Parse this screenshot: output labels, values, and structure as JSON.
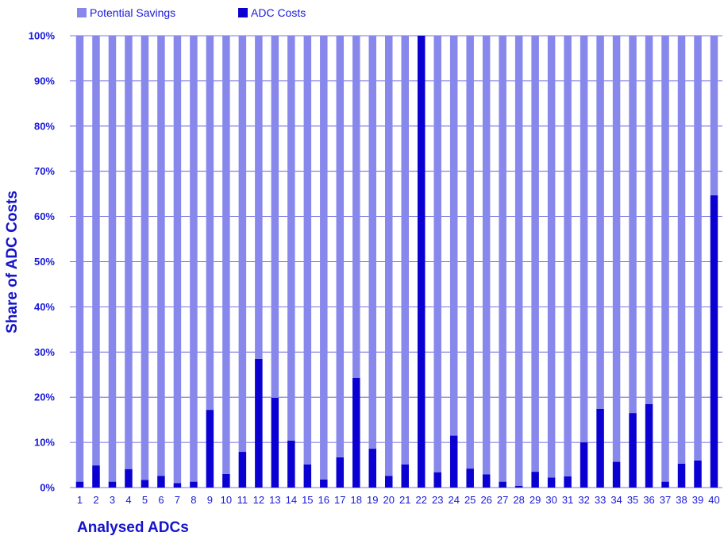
{
  "chart_data": {
    "type": "bar",
    "stacked": true,
    "percent": true,
    "xlabel": "Analysed ADCs",
    "ylabel": "Share of ADC Costs",
    "ylim": [
      0,
      100
    ],
    "y_ticks": [
      "0%",
      "10%",
      "20%",
      "30%",
      "40%",
      "50%",
      "60%",
      "70%",
      "80%",
      "90%",
      "100%"
    ],
    "grid": true,
    "legend_position": "top-left",
    "categories": [
      "1",
      "2",
      "3",
      "4",
      "5",
      "6",
      "7",
      "8",
      "9",
      "10",
      "11",
      "12",
      "13",
      "14",
      "15",
      "16",
      "17",
      "18",
      "19",
      "20",
      "21",
      "22",
      "23",
      "24",
      "25",
      "26",
      "27",
      "28",
      "29",
      "30",
      "31",
      "32",
      "33",
      "34",
      "35",
      "36",
      "37",
      "38",
      "39",
      "40"
    ],
    "series": [
      {
        "name": "ADC Costs",
        "color": "#0a00d2",
        "values": [
          1.3,
          4.9,
          1.3,
          4.1,
          1.7,
          2.6,
          1.0,
          1.3,
          17.2,
          3.0,
          7.9,
          28.5,
          19.9,
          10.4,
          5.1,
          1.8,
          6.7,
          24.3,
          8.6,
          2.6,
          5.1,
          100,
          3.4,
          11.5,
          4.2,
          2.9,
          1.3,
          0.4,
          3.5,
          2.2,
          2.5,
          10.0,
          17.4,
          5.7,
          16.5,
          18.5,
          1.3,
          5.3,
          6.0,
          64.7
        ]
      },
      {
        "name": "Potential Savings",
        "color": "#8888ec",
        "values": [
          98.7,
          95.1,
          98.7,
          95.9,
          98.3,
          97.4,
          99.0,
          98.7,
          82.8,
          97.0,
          92.1,
          71.5,
          80.1,
          89.6,
          94.9,
          98.2,
          93.3,
          75.7,
          91.4,
          97.4,
          94.9,
          0,
          96.6,
          88.5,
          95.8,
          97.1,
          98.7,
          99.6,
          96.5,
          97.8,
          97.5,
          90.0,
          82.6,
          94.3,
          83.5,
          81.5,
          98.7,
          94.7,
          94.0,
          35.3
        ]
      }
    ],
    "legend": [
      {
        "label": "Potential Savings",
        "color": "#8888ec"
      },
      {
        "label": "ADC Costs",
        "color": "#0a00d2"
      }
    ]
  }
}
